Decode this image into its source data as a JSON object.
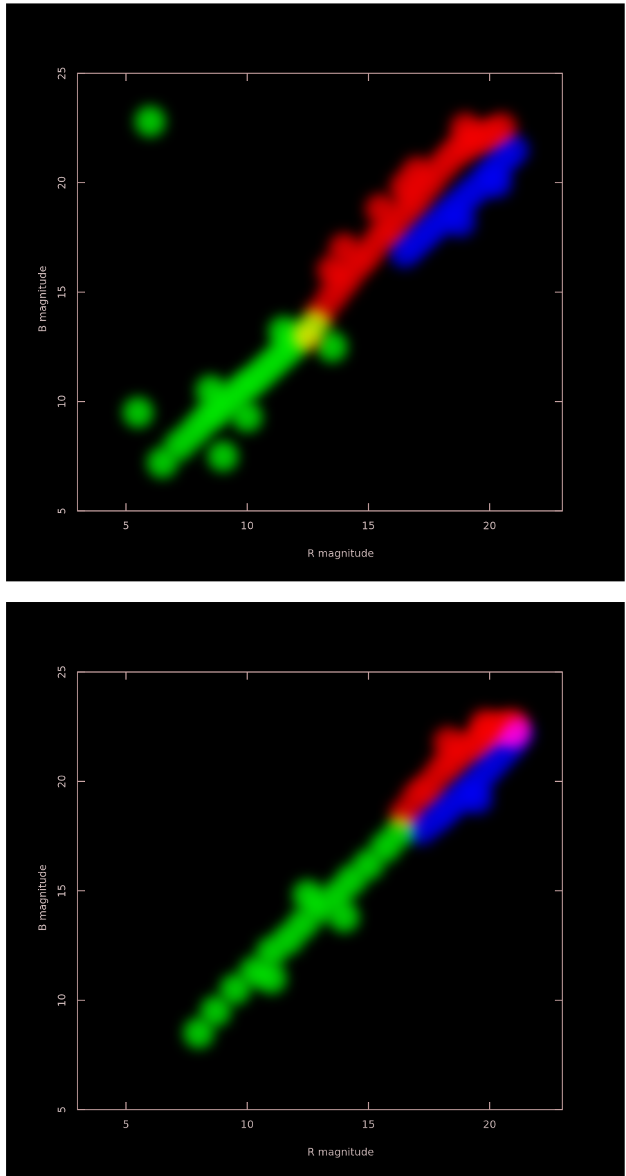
{
  "chart_data": [
    {
      "type": "scatter",
      "xlabel": "R magnitude",
      "ylabel": "B magnitude",
      "xlim": [
        3,
        23
      ],
      "ylim": [
        5,
        25
      ],
      "xticks": [
        5,
        10,
        15,
        20
      ],
      "yticks": [
        5,
        10,
        15,
        20,
        25
      ],
      "series": [
        {
          "color": "#00ff00",
          "x": [
            6.5,
            7.2,
            7.8,
            8.3,
            8.8,
            9.3,
            9.8,
            10.3,
            10.8,
            11.3,
            11.8,
            12.3,
            12.8,
            8.5,
            10,
            11.5,
            5.5,
            9,
            13.5,
            6
          ],
          "y": [
            7.2,
            8,
            8.6,
            9.2,
            9.6,
            10.1,
            10.6,
            11,
            11.5,
            12,
            12.5,
            13,
            13.5,
            10.5,
            9.3,
            13.2,
            9.5,
            7.5,
            12.5,
            22.8
          ]
        },
        {
          "color": "#ff0000",
          "x": [
            12.5,
            13,
            13.5,
            14,
            14.5,
            15,
            15.5,
            16,
            16.5,
            17,
            17.5,
            18,
            18.5,
            19,
            19.5,
            20,
            14,
            15.5,
            17,
            13.5,
            16.5,
            19,
            20.5
          ],
          "y": [
            13,
            14,
            14.8,
            15.5,
            16.2,
            16.8,
            17.5,
            18,
            18.7,
            19.3,
            20,
            20.7,
            21.3,
            21.7,
            22,
            22.2,
            17,
            18.8,
            20.5,
            16,
            19.8,
            22.5,
            22.5
          ]
        },
        {
          "color": "#0000ff",
          "x": [
            16.5,
            17,
            17.5,
            18,
            18.5,
            19,
            19.5,
            20,
            20.5,
            21,
            18.8,
            20.3
          ],
          "y": [
            16.8,
            17.3,
            17.8,
            18.3,
            18.8,
            19.3,
            19.8,
            20.4,
            21,
            21.5,
            18.2,
            20
          ]
        }
      ]
    },
    {
      "type": "scatter",
      "xlabel": "R magnitude",
      "ylabel": "B magnitude",
      "xlim": [
        3,
        23
      ],
      "ylim": [
        5,
        25
      ],
      "xticks": [
        5,
        10,
        15,
        20
      ],
      "yticks": [
        5,
        10,
        15,
        20,
        25
      ],
      "series": [
        {
          "color": "#00ff00",
          "x": [
            8,
            8.7,
            9.5,
            10.3,
            11,
            11.7,
            12.3,
            13,
            13.7,
            14.3,
            15,
            15.7,
            16.3,
            12.5,
            14,
            11
          ],
          "y": [
            8.5,
            9.5,
            10.5,
            11.3,
            12.2,
            12.8,
            13.5,
            14.2,
            14.8,
            15.5,
            16.2,
            17,
            17.7,
            14.8,
            13.8,
            11
          ]
        },
        {
          "color": "#ff0000",
          "x": [
            16.5,
            17,
            17.5,
            18,
            18.5,
            19,
            19.5,
            20,
            20.5,
            21,
            18.3,
            19.8,
            21
          ],
          "y": [
            18.5,
            19.3,
            19.8,
            20.5,
            21,
            21.5,
            21.8,
            22.2,
            22.5,
            22.6,
            21.8,
            22.6,
            22.2
          ]
        },
        {
          "color": "#0000ff",
          "x": [
            17.2,
            17.8,
            18.3,
            18.8,
            19.3,
            19.8,
            20.3,
            20.8,
            21.2,
            19.5
          ],
          "y": [
            17.8,
            18.3,
            18.8,
            19.3,
            19.8,
            20.4,
            21,
            21.6,
            22.2,
            19.2
          ]
        }
      ]
    }
  ]
}
